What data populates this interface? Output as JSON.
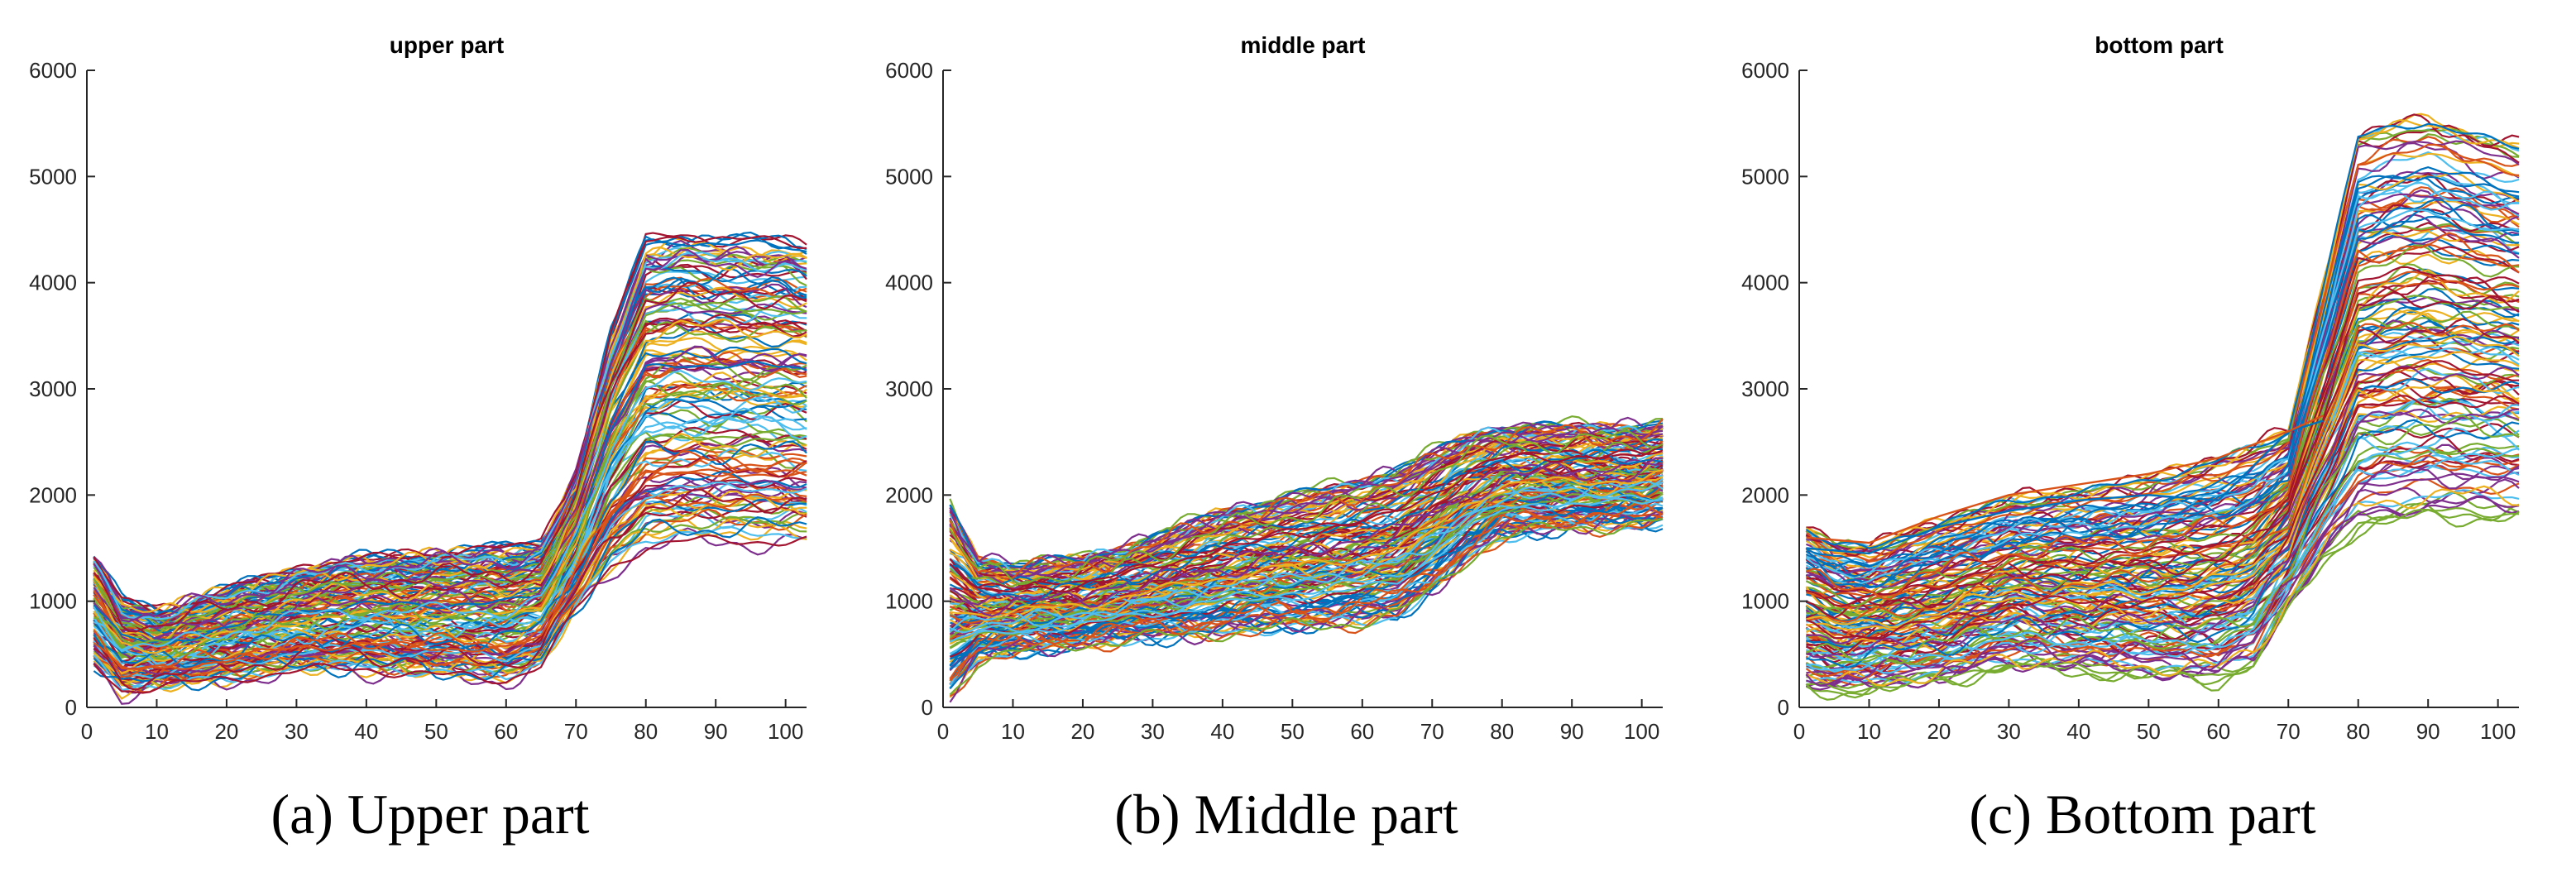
{
  "figure": {
    "captions": [
      "(a) Upper part",
      "(b) Middle part",
      "(c) Bottom part"
    ]
  },
  "chart_data": [
    {
      "type": "line",
      "title": "upper part",
      "xlabel": "",
      "ylabel": "",
      "xlim": [
        0,
        103
      ],
      "ylim": [
        0,
        6000
      ],
      "xticks": [
        0,
        10,
        20,
        30,
        40,
        50,
        60,
        70,
        80,
        90,
        100
      ],
      "yticks": [
        0,
        1000,
        2000,
        3000,
        4000,
        5000,
        6000
      ],
      "grid": false,
      "legend": "none",
      "series_count_note_visible": false,
      "envelope": {
        "x": [
          1,
          5,
          10,
          20,
          30,
          40,
          50,
          60,
          65,
          70,
          75,
          80,
          85,
          90,
          95,
          100,
          103
        ],
        "low": [
          400,
          150,
          200,
          250,
          350,
          350,
          300,
          250,
          400,
          900,
          1300,
          1500,
          1550,
          1550,
          1550,
          1550,
          1550
        ],
        "high": [
          1400,
          1000,
          900,
          1100,
          1300,
          1400,
          1450,
          1500,
          1550,
          2200,
          3500,
          4400,
          4450,
          4400,
          4400,
          4400,
          4350
        ]
      }
    },
    {
      "type": "line",
      "title": "middle part",
      "xlabel": "",
      "ylabel": "",
      "xlim": [
        0,
        103
      ],
      "ylim": [
        0,
        6000
      ],
      "xticks": [
        0,
        10,
        20,
        30,
        40,
        50,
        60,
        70,
        80,
        90,
        100
      ],
      "yticks": [
        0,
        1000,
        2000,
        3000,
        4000,
        5000,
        6000
      ],
      "grid": false,
      "legend": "none",
      "envelope": {
        "x": [
          1,
          5,
          10,
          20,
          30,
          40,
          50,
          60,
          65,
          70,
          75,
          80,
          85,
          90,
          95,
          100,
          103
        ],
        "low": [
          100,
          450,
          500,
          600,
          650,
          700,
          750,
          800,
          850,
          1100,
          1400,
          1600,
          1650,
          1700,
          1700,
          1700,
          1750
        ],
        "high": [
          1900,
          1400,
          1350,
          1400,
          1600,
          1850,
          2000,
          2150,
          2250,
          2400,
          2550,
          2650,
          2650,
          2650,
          2650,
          2650,
          2700
        ]
      }
    },
    {
      "type": "line",
      "title": "bottom part",
      "xlabel": "",
      "ylabel": "",
      "xlim": [
        0,
        103
      ],
      "ylim": [
        0,
        6000
      ],
      "xticks": [
        0,
        10,
        20,
        30,
        40,
        50,
        60,
        70,
        80,
        90,
        100
      ],
      "yticks": [
        0,
        1000,
        2000,
        3000,
        4000,
        5000,
        6000
      ],
      "grid": false,
      "legend": "none",
      "envelope": {
        "x": [
          1,
          5,
          10,
          20,
          30,
          40,
          50,
          60,
          65,
          70,
          75,
          80,
          85,
          90,
          95,
          100,
          103
        ],
        "low": [
          150,
          100,
          150,
          200,
          350,
          300,
          250,
          200,
          350,
          900,
          1300,
          1600,
          1650,
          1700,
          1700,
          1700,
          1700
        ],
        "high": [
          1700,
          1550,
          1500,
          1750,
          1950,
          2050,
          2150,
          2350,
          2450,
          2600,
          4000,
          5400,
          5500,
          5550,
          5450,
          5350,
          5300
        ]
      },
      "outliers": [
        {
          "x": [
            1,
            10,
            20,
            30,
            40,
            50,
            60,
            70,
            75
          ],
          "y": [
            1500,
            1450,
            1700,
            1850,
            1950,
            2000,
            1950,
            2600,
            2700
          ]
        },
        {
          "x": [
            1,
            10,
            20,
            30,
            40,
            50,
            60,
            70,
            75
          ],
          "y": [
            1600,
            1550,
            1800,
            2000,
            2100,
            2200,
            2350,
            2600,
            2750
          ]
        }
      ]
    }
  ]
}
